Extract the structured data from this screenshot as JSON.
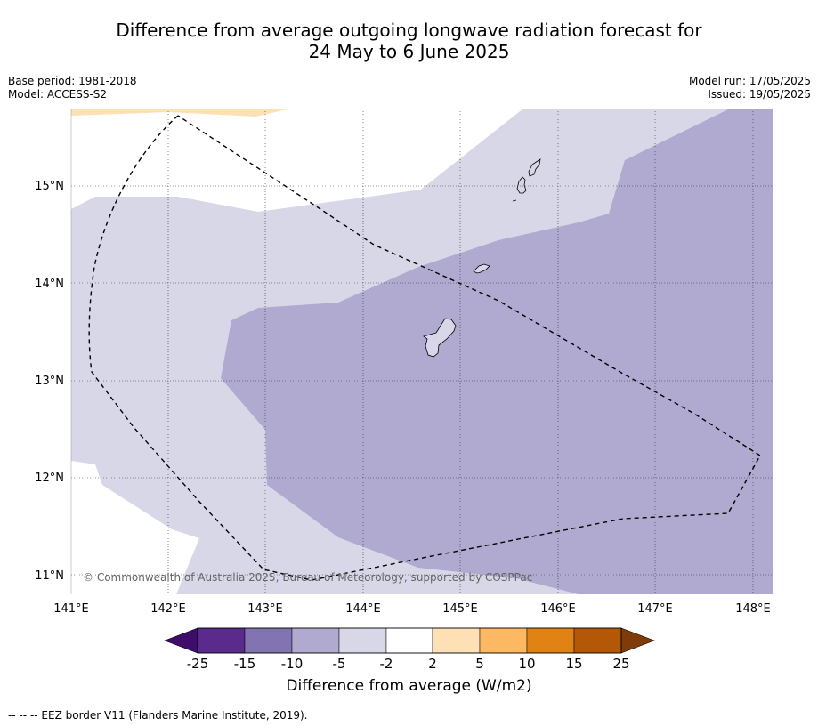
{
  "header": {
    "title_line1": "Difference from average outgoing longwave radiation forecast for",
    "title_line2": "24 May to 6 June 2025",
    "base_period": "Base period: 1981-2018",
    "model": "Model: ACCESS-S2",
    "model_run": "Model run: 17/05/2025",
    "issued": "Issued: 19/05/2025"
  },
  "map": {
    "lon_labels": [
      "141°E",
      "142°E",
      "143°E",
      "144°E",
      "145°E",
      "146°E",
      "147°E",
      "148°E"
    ],
    "lat_labels": [
      "15°N",
      "14°N",
      "13°N",
      "12°N",
      "11°N"
    ],
    "copyright": "© Commonwealth of Australia 2025, Bureau of Meteorology, supported by COSPPac"
  },
  "colorbar": {
    "labels": [
      "-25",
      "-15",
      "-10",
      "-5",
      "-2",
      "2",
      "5",
      "10",
      "15",
      "25"
    ],
    "colors": [
      "#3f0c6a",
      "#5a2a8c",
      "#8274b1",
      "#b0a9d0",
      "#d7d7e8",
      "#ffffff",
      "#fde0b4",
      "#fdb863",
      "#e08214",
      "#b35806",
      "#7f3b08"
    ],
    "title": "Difference from average (W/m2)"
  },
  "footer": {
    "legend": "--  --  -- EEZ border V11 (Flanders Marine Institute, 2019)."
  }
}
